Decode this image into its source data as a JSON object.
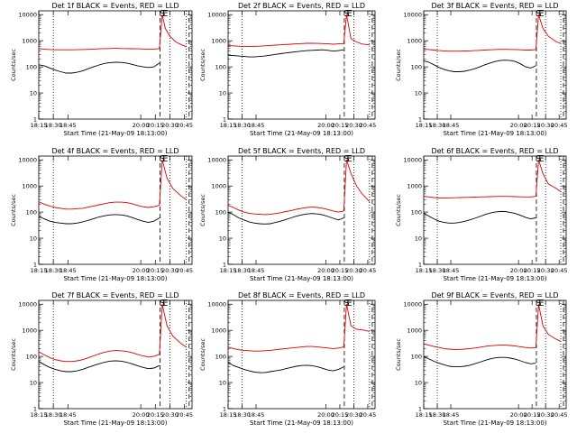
{
  "chart_data": {
    "type": "line",
    "layout": "3x3 grid",
    "panels": [
      {
        "title": "Det 1f BLACK = Events, RED = LLD",
        "xlabel": "Start Time (21-May-09 18:13:00)",
        "ylabel": "Counts/sec",
        "series": [
          {
            "color": "#000000",
            "values": [
              120,
              110,
              90,
              75,
              65,
              58,
              58,
              62,
              70,
              85,
              100,
              118,
              135,
              145,
              150,
              148,
              140,
              125,
              110,
              100,
              95,
              100,
              140
            ]
          },
          {
            "color": "#dd0000",
            "values": [
              500,
              480,
              460,
              450,
              450,
              450,
              450,
              455,
              460,
              470,
              480,
              490,
              500,
              505,
              510,
              505,
              500,
              495,
              490,
              485,
              480,
              480,
              500
            ]
          }
        ],
        "after_markers": [
          {
            "t": 20.37,
            "v": 10000
          },
          {
            "t": 20.42,
            "v": 3000
          },
          {
            "t": 20.5,
            "v": 1500
          },
          {
            "t": 20.6,
            "v": 900
          },
          {
            "t": 20.7,
            "v": 700
          },
          {
            "t": 20.78,
            "v": 600
          }
        ]
      },
      {
        "title": "Det 2f BLACK = Events, RED = LLD",
        "xlabel": "Start Time (21-May-09 18:13:00)",
        "ylabel": "Counts/sec",
        "series": [
          {
            "color": "#000000",
            "values": [
              280,
              270,
              260,
              250,
              240,
              240,
              250,
              260,
              280,
              300,
              320,
              340,
              360,
              380,
              400,
              420,
              430,
              440,
              450,
              430,
              400,
              420,
              450
            ]
          },
          {
            "color": "#dd0000",
            "values": [
              650,
              640,
              620,
              600,
              600,
              610,
              620,
              640,
              660,
              680,
              700,
              720,
              740,
              760,
              780,
              800,
              800,
              790,
              780,
              760,
              740,
              760,
              780
            ]
          }
        ],
        "after_markers": [
          {
            "t": 20.37,
            "v": 10000
          },
          {
            "t": 20.45,
            "v": 1200
          },
          {
            "t": 20.55,
            "v": 900
          },
          {
            "t": 20.65,
            "v": 750
          },
          {
            "t": 20.78,
            "v": 700
          }
        ]
      },
      {
        "title": "Det 3f BLACK = Events, RED = LLD",
        "xlabel": "Start Time (21-May-09 18:13:00)",
        "ylabel": "Counts/sec",
        "series": [
          {
            "color": "#000000",
            "values": [
              170,
              150,
              120,
              95,
              80,
              70,
              65,
              65,
              68,
              75,
              85,
              100,
              120,
              140,
              160,
              175,
              180,
              175,
              160,
              130,
              100,
              90,
              110
            ]
          },
          {
            "color": "#dd0000",
            "values": [
              480,
              460,
              440,
              420,
              410,
              400,
              400,
              400,
              405,
              410,
              420,
              430,
              440,
              450,
              460,
              470,
              470,
              465,
              460,
              450,
              440,
              440,
              460
            ]
          }
        ],
        "after_markers": [
          {
            "t": 20.37,
            "v": 10000
          },
          {
            "t": 20.45,
            "v": 3000
          },
          {
            "t": 20.55,
            "v": 1500
          },
          {
            "t": 20.7,
            "v": 900
          },
          {
            "t": 20.78,
            "v": 800
          }
        ]
      },
      {
        "title": "Det 4f BLACK = Events, RED = LLD",
        "xlabel": "Start Time (21-May-09 18:13:00)",
        "ylabel": "Counts/sec",
        "series": [
          {
            "color": "#000000",
            "values": [
              70,
              55,
              45,
              40,
              38,
              36,
              36,
              38,
              42,
              48,
              56,
              65,
              72,
              78,
              80,
              78,
              72,
              62,
              52,
              45,
              40,
              45,
              60
            ]
          },
          {
            "color": "#dd0000",
            "values": [
              250,
              200,
              170,
              150,
              140,
              130,
              130,
              135,
              140,
              155,
              170,
              190,
              210,
              230,
              240,
              240,
              230,
              210,
              180,
              160,
              150,
              160,
              180
            ]
          }
        ],
        "after_markers": [
          {
            "t": 20.37,
            "v": 10000
          },
          {
            "t": 20.45,
            "v": 2000
          },
          {
            "t": 20.55,
            "v": 800
          },
          {
            "t": 20.7,
            "v": 400
          },
          {
            "t": 20.78,
            "v": 300
          }
        ]
      },
      {
        "title": "Det 5f BLACK = Events, RED = LLD",
        "xlabel": "Start Time (21-May-09 18:13:00)",
        "ylabel": "Counts/sec",
        "series": [
          {
            "color": "#000000",
            "values": [
              100,
              80,
              60,
              50,
              42,
              38,
              36,
              35,
              36,
              40,
              45,
              52,
              60,
              70,
              78,
              85,
              88,
              85,
              78,
              68,
              58,
              50,
              60
            ]
          },
          {
            "color": "#dd0000",
            "values": [
              180,
              150,
              120,
              100,
              90,
              85,
              82,
              80,
              82,
              88,
              95,
              105,
              115,
              128,
              140,
              150,
              155,
              150,
              140,
              125,
              110,
              100,
              110
            ]
          }
        ],
        "after_markers": [
          {
            "t": 20.37,
            "v": 10000
          },
          {
            "t": 20.45,
            "v": 3000
          },
          {
            "t": 20.55,
            "v": 1000
          },
          {
            "t": 20.65,
            "v": 500
          },
          {
            "t": 20.78,
            "v": 250
          }
        ]
      },
      {
        "title": "Det 6f BLACK = Events, RED = LLD",
        "xlabel": "Start Time (21-May-09 18:13:00)",
        "ylabel": "Counts/sec",
        "series": [
          {
            "color": "#000000",
            "values": [
              90,
              70,
              55,
              45,
              40,
              38,
              38,
              40,
              44,
              50,
              58,
              68,
              80,
              92,
              100,
              105,
              105,
              98,
              88,
              75,
              62,
              55,
              60
            ]
          },
          {
            "color": "#dd0000",
            "values": [
              400,
              380,
              360,
              350,
              350,
              350,
              355,
              360,
              365,
              370,
              375,
              380,
              385,
              390,
              395,
              400,
              400,
              395,
              390,
              385,
              380,
              380,
              400
            ]
          }
        ],
        "after_markers": [
          {
            "t": 20.37,
            "v": 10000
          },
          {
            "t": 20.45,
            "v": 3000
          },
          {
            "t": 20.55,
            "v": 1200
          },
          {
            "t": 20.7,
            "v": 800
          },
          {
            "t": 20.78,
            "v": 600
          }
        ]
      },
      {
        "title": "Det 7f BLACK = Events, RED = LLD",
        "xlabel": "Start Time (21-May-09 18:13:00)",
        "ylabel": "Counts/sec",
        "series": [
          {
            "color": "#000000",
            "values": [
              65,
              48,
              38,
              32,
              28,
              26,
              26,
              28,
              32,
              38,
              45,
              52,
              60,
              66,
              68,
              66,
              60,
              52,
              44,
              38,
              34,
              36,
              45
            ]
          },
          {
            "color": "#dd0000",
            "values": [
              150,
              115,
              90,
              75,
              68,
              64,
              64,
              68,
              75,
              88,
              105,
              125,
              145,
              160,
              168,
              165,
              155,
              140,
              120,
              105,
              95,
              100,
              120
            ]
          }
        ],
        "after_markers": [
          {
            "t": 20.37,
            "v": 10000
          },
          {
            "t": 20.45,
            "v": 1500
          },
          {
            "t": 20.55,
            "v": 600
          },
          {
            "t": 20.7,
            "v": 300
          },
          {
            "t": 20.78,
            "v": 230
          }
        ]
      },
      {
        "title": "Det 8f BLACK = Events, RED = LLD",
        "xlabel": "Start Time (21-May-09 18:13:00)",
        "ylabel": "Counts/sec",
        "series": [
          {
            "color": "#000000",
            "values": [
              60,
              45,
              38,
              32,
              28,
              25,
              24,
              24,
              26,
              28,
              30,
              34,
              38,
              42,
              45,
              46,
              44,
              40,
              35,
              30,
              28,
              32,
              40
            ]
          },
          {
            "color": "#dd0000",
            "values": [
              230,
              200,
              180,
              170,
              165,
              160,
              160,
              165,
              170,
              180,
              190,
              200,
              210,
              220,
              230,
              240,
              240,
              230,
              220,
              210,
              200,
              210,
              230
            ]
          }
        ],
        "after_markers": [
          {
            "t": 20.37,
            "v": 10000
          },
          {
            "t": 20.45,
            "v": 1500
          },
          {
            "t": 20.55,
            "v": 1100
          },
          {
            "t": 20.7,
            "v": 1000
          },
          {
            "t": 20.78,
            "v": 900
          }
        ]
      },
      {
        "title": "Det 9f BLACK = Events, RED = LLD",
        "xlabel": "Start Time (21-May-09 18:13:00)",
        "ylabel": "Counts/sec",
        "series": [
          {
            "color": "#000000",
            "values": [
              100,
              80,
              65,
              55,
              48,
              42,
              40,
              40,
              42,
              46,
              52,
              60,
              70,
              80,
              88,
              92,
              92,
              86,
              78,
              68,
              58,
              52,
              55
            ]
          },
          {
            "color": "#dd0000",
            "values": [
              300,
              270,
              240,
              220,
              200,
              190,
              185,
              185,
              190,
              200,
              210,
              225,
              240,
              255,
              265,
              270,
              270,
              262,
              250,
              235,
              220,
              210,
              220
            ]
          }
        ],
        "after_markers": [
          {
            "t": 20.37,
            "v": 10000
          },
          {
            "t": 20.45,
            "v": 1500
          },
          {
            "t": 20.55,
            "v": 700
          },
          {
            "t": 20.7,
            "v": 450
          },
          {
            "t": 20.78,
            "v": 380
          }
        ]
      }
    ],
    "x_range": [
      18.25,
      20.88
    ],
    "x_tick_labels": [
      "18:15",
      "18:30",
      "18:45",
      "20:00",
      "20:15",
      "20:30",
      "20:45"
    ],
    "y_log": true,
    "y_range": [
      1,
      14000
    ],
    "y_tick_labels": [
      "1",
      "10",
      "100",
      "1000",
      "10000"
    ],
    "dotted_verticals_t": [
      18.5,
      20.5,
      20.78
    ],
    "dashed_verticals_t": [
      20.33,
      20.83
    ],
    "segment_markers": [
      {
        "t": 20.37,
        "label": "S"
      },
      {
        "t": 20.42,
        "label": "E"
      }
    ],
    "grid": false,
    "legend": "none"
  },
  "colors": {
    "events": "#000000",
    "lld": "#dd0000",
    "axes": "#000000",
    "background": "#ffffff"
  }
}
